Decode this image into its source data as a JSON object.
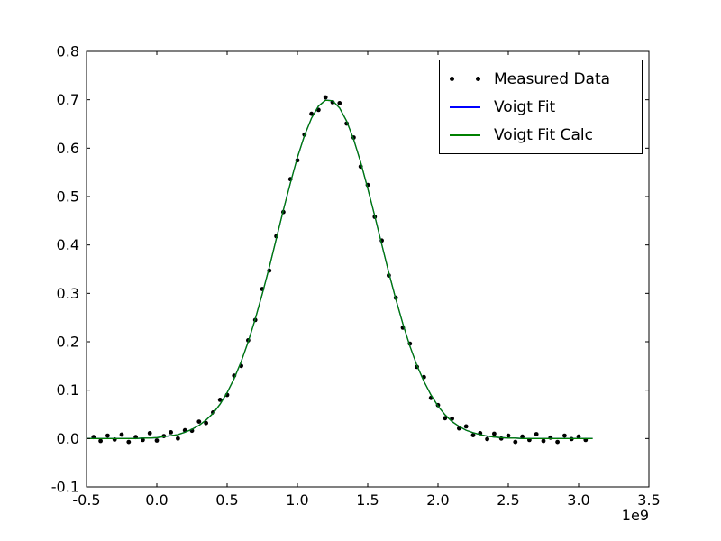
{
  "chart_data": {
    "type": "scatter+line",
    "x_offset_label": "1e9",
    "axes": {
      "xlim": [
        -0.5,
        3.5
      ],
      "ylim": [
        -0.1,
        0.8
      ],
      "xticks": [
        -0.5,
        0.0,
        0.5,
        1.0,
        1.5,
        2.0,
        2.5,
        3.0,
        3.5
      ],
      "xtick_labels": [
        "-0.5",
        "0.0",
        "0.5",
        "1.0",
        "1.5",
        "2.0",
        "2.5",
        "3.0",
        "3.5"
      ],
      "yticks": [
        -0.1,
        0.0,
        0.1,
        0.2,
        0.3,
        0.4,
        0.5,
        0.6,
        0.7,
        0.8
      ],
      "ytick_labels": [
        "-0.1",
        "0.0",
        "0.1",
        "0.2",
        "0.3",
        "0.4",
        "0.5",
        "0.6",
        "0.7",
        "0.8"
      ],
      "x_units_note": "x values below are in units of 1e9",
      "grid": false
    },
    "fit_curve": {
      "x": [
        -0.5,
        -0.45,
        -0.4,
        -0.35,
        -0.3,
        -0.25,
        -0.2,
        -0.15,
        -0.1,
        -0.05,
        0.0,
        0.05,
        0.1,
        0.15,
        0.2,
        0.25,
        0.3,
        0.35,
        0.4,
        0.45,
        0.5,
        0.55,
        0.6,
        0.65,
        0.7,
        0.75,
        0.8,
        0.85,
        0.9,
        0.95,
        1.0,
        1.05,
        1.1,
        1.15,
        1.2,
        1.25,
        1.3,
        1.35,
        1.4,
        1.45,
        1.5,
        1.55,
        1.6,
        1.65,
        1.7,
        1.75,
        1.8,
        1.85,
        1.9,
        1.95,
        2.0,
        2.05,
        2.1,
        2.15,
        2.2,
        2.25,
        2.3,
        2.35,
        2.4,
        2.45,
        2.5,
        2.55,
        2.6,
        2.65,
        2.7,
        2.75,
        2.8,
        2.85,
        2.9,
        2.95,
        3.0,
        3.05,
        3.1
      ],
      "y": [
        0.0,
        0.0,
        0.0,
        0.0,
        0.0,
        0.0,
        0.0,
        0.0,
        0.001,
        0.001,
        0.002,
        0.004,
        0.006,
        0.008,
        0.013,
        0.019,
        0.027,
        0.038,
        0.052,
        0.071,
        0.095,
        0.124,
        0.159,
        0.2,
        0.247,
        0.299,
        0.354,
        0.413,
        0.472,
        0.528,
        0.581,
        0.626,
        0.662,
        0.687,
        0.699,
        0.698,
        0.683,
        0.656,
        0.618,
        0.571,
        0.517,
        0.46,
        0.401,
        0.343,
        0.288,
        0.237,
        0.191,
        0.151,
        0.118,
        0.09,
        0.067,
        0.049,
        0.035,
        0.025,
        0.017,
        0.012,
        0.008,
        0.005,
        0.003,
        0.002,
        0.001,
        0.001,
        0.0,
        0.0,
        0.0,
        0.0,
        0.0,
        0.0,
        0.0,
        0.0,
        0.0,
        0.0,
        0.0
      ],
      "peak_center": 1.22,
      "peak_height": 0.7
    },
    "series": [
      {
        "name": "Measured Data",
        "type": "scatter",
        "color": "#000000",
        "marker": "point",
        "x": [
          -0.45,
          -0.4,
          -0.35,
          -0.3,
          -0.25,
          -0.2,
          -0.15,
          -0.1,
          -0.05,
          0.0,
          0.05,
          0.1,
          0.15,
          0.2,
          0.25,
          0.3,
          0.35,
          0.4,
          0.45,
          0.5,
          0.55,
          0.6,
          0.65,
          0.7,
          0.75,
          0.8,
          0.85,
          0.9,
          0.95,
          1.0,
          1.05,
          1.1,
          1.15,
          1.2,
          1.25,
          1.3,
          1.35,
          1.4,
          1.45,
          1.5,
          1.55,
          1.6,
          1.65,
          1.7,
          1.75,
          1.8,
          1.85,
          1.9,
          1.95,
          2.0,
          2.05,
          2.1,
          2.15,
          2.2,
          2.25,
          2.3,
          2.35,
          2.4,
          2.45,
          2.5,
          2.55,
          2.6,
          2.65,
          2.7,
          2.75,
          2.8,
          2.85,
          2.9,
          2.95,
          3.0,
          3.05
        ],
        "y": [
          0.003,
          -0.005,
          0.006,
          -0.002,
          0.008,
          -0.007,
          0.003,
          -0.003,
          0.011,
          -0.004,
          0.005,
          0.013,
          0.0,
          0.017,
          0.016,
          0.035,
          0.032,
          0.054,
          0.08,
          0.09,
          0.13,
          0.15,
          0.203,
          0.245,
          0.309,
          0.347,
          0.418,
          0.468,
          0.536,
          0.575,
          0.628,
          0.671,
          0.679,
          0.705,
          0.695,
          0.693,
          0.651,
          0.622,
          0.562,
          0.524,
          0.458,
          0.409,
          0.337,
          0.291,
          0.229,
          0.196,
          0.148,
          0.127,
          0.084,
          0.069,
          0.042,
          0.041,
          0.021,
          0.025,
          0.007,
          0.011,
          -0.001,
          0.01,
          0.0,
          0.006,
          -0.007,
          0.004,
          -0.003,
          0.009,
          -0.005,
          0.002,
          -0.007,
          0.006,
          -0.001,
          0.004,
          -0.003
        ]
      },
      {
        "name": "Voigt Fit",
        "type": "line",
        "color": "#0000ff",
        "use_data": "fit_curve"
      },
      {
        "name": "Voigt Fit Calc",
        "type": "line",
        "color": "#008000",
        "use_data": "fit_curve"
      }
    ],
    "legend": {
      "position": "upper right",
      "entries": [
        "Measured Data",
        "Voigt Fit",
        "Voigt Fit Calc"
      ]
    }
  }
}
